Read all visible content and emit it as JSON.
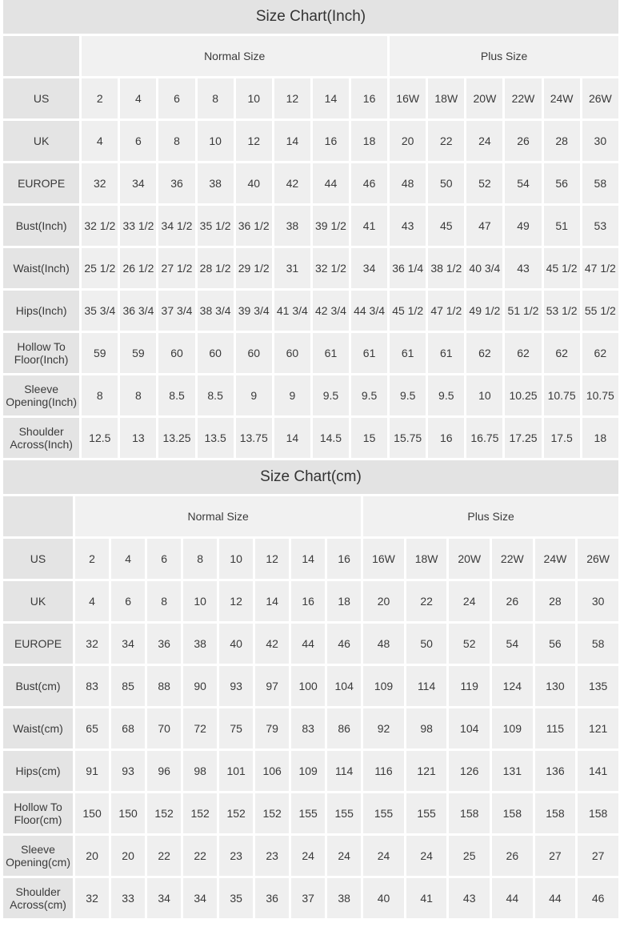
{
  "inch": {
    "title": "Size Chart(Inch)",
    "groups": [
      "Normal Size",
      "Plus Size"
    ],
    "rows": [
      {
        "label": "US",
        "values": [
          "2",
          "4",
          "6",
          "8",
          "10",
          "12",
          "14",
          "16",
          "16W",
          "18W",
          "20W",
          "22W",
          "24W",
          "26W"
        ]
      },
      {
        "label": "UK",
        "values": [
          "4",
          "6",
          "8",
          "10",
          "12",
          "14",
          "16",
          "18",
          "20",
          "22",
          "24",
          "26",
          "28",
          "30"
        ]
      },
      {
        "label": "EUROPE",
        "values": [
          "32",
          "34",
          "36",
          "38",
          "40",
          "42",
          "44",
          "46",
          "48",
          "50",
          "52",
          "54",
          "56",
          "58"
        ]
      },
      {
        "label": "Bust(Inch)",
        "values": [
          "32 1/2",
          "33 1/2",
          "34 1/2",
          "35 1/2",
          "36 1/2",
          "38",
          "39 1/2",
          "41",
          "43",
          "45",
          "47",
          "49",
          "51",
          "53"
        ]
      },
      {
        "label": "Waist(Inch)",
        "values": [
          "25 1/2",
          "26 1/2",
          "27 1/2",
          "28 1/2",
          "29 1/2",
          "31",
          "32 1/2",
          "34",
          "36 1/4",
          "38 1/2",
          "40 3/4",
          "43",
          "45 1/2",
          "47 1/2"
        ]
      },
      {
        "label": "Hips(Inch)",
        "values": [
          "35 3/4",
          "36 3/4",
          "37 3/4",
          "38 3/4",
          "39 3/4",
          "41 3/4",
          "42 3/4",
          "44 3/4",
          "45 1/2",
          "47 1/2",
          "49 1/2",
          "51 1/2",
          "53 1/2",
          "55 1/2"
        ]
      },
      {
        "label": "Hollow To Floor(Inch)",
        "values": [
          "59",
          "59",
          "60",
          "60",
          "60",
          "60",
          "61",
          "61",
          "61",
          "61",
          "62",
          "62",
          "62",
          "62"
        ]
      },
      {
        "label": "Sleeve Opening(Inch)",
        "values": [
          "8",
          "8",
          "8.5",
          "8.5",
          "9",
          "9",
          "9.5",
          "9.5",
          "9.5",
          "9.5",
          "10",
          "10.25",
          "10.75",
          "10.75"
        ]
      },
      {
        "label": "Shoulder Across(Inch)",
        "values": [
          "12.5",
          "13",
          "13.25",
          "13.5",
          "13.75",
          "14",
          "14.5",
          "15",
          "15.75",
          "16",
          "16.75",
          "17.25",
          "17.5",
          "18"
        ]
      }
    ]
  },
  "cm": {
    "title": "Size Chart(cm)",
    "groups": [
      "Normal Size",
      "Plus Size"
    ],
    "rows": [
      {
        "label": "US",
        "values": [
          "2",
          "4",
          "6",
          "8",
          "10",
          "12",
          "14",
          "16",
          "16W",
          "18W",
          "20W",
          "22W",
          "24W",
          "26W"
        ]
      },
      {
        "label": "UK",
        "values": [
          "4",
          "6",
          "8",
          "10",
          "12",
          "14",
          "16",
          "18",
          "20",
          "22",
          "24",
          "26",
          "28",
          "30"
        ]
      },
      {
        "label": "EUROPE",
        "values": [
          "32",
          "34",
          "36",
          "38",
          "40",
          "42",
          "44",
          "46",
          "48",
          "50",
          "52",
          "54",
          "56",
          "58"
        ]
      },
      {
        "label": "Bust(cm)",
        "values": [
          "83",
          "85",
          "88",
          "90",
          "93",
          "97",
          "100",
          "104",
          "109",
          "114",
          "119",
          "124",
          "130",
          "135"
        ]
      },
      {
        "label": "Waist(cm)",
        "values": [
          "65",
          "68",
          "70",
          "72",
          "75",
          "79",
          "83",
          "86",
          "92",
          "98",
          "104",
          "109",
          "115",
          "121"
        ]
      },
      {
        "label": "Hips(cm)",
        "values": [
          "91",
          "93",
          "96",
          "98",
          "101",
          "106",
          "109",
          "114",
          "116",
          "121",
          "126",
          "131",
          "136",
          "141"
        ]
      },
      {
        "label": "Hollow To Floor(cm)",
        "values": [
          "150",
          "150",
          "152",
          "152",
          "152",
          "152",
          "155",
          "155",
          "155",
          "155",
          "158",
          "158",
          "158",
          "158"
        ]
      },
      {
        "label": "Sleeve Opening(cm)",
        "values": [
          "20",
          "20",
          "22",
          "22",
          "23",
          "23",
          "24",
          "24",
          "24",
          "24",
          "25",
          "26",
          "27",
          "27"
        ]
      },
      {
        "label": "Shoulder Across(cm)",
        "values": [
          "32",
          "33",
          "34",
          "34",
          "35",
          "36",
          "37",
          "38",
          "40",
          "41",
          "43",
          "44",
          "44",
          "46"
        ]
      }
    ]
  }
}
